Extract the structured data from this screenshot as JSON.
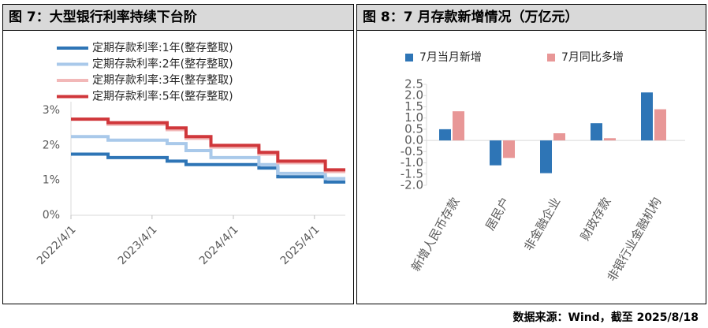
{
  "chart_data": [
    {
      "type": "line",
      "step": true,
      "title": "图 7：大型银行利率持续下台阶",
      "x": [
        "2022/4/1",
        "2022/9/15",
        "2023/6/8",
        "2023/9/1",
        "2023/12/22",
        "2024/7/25",
        "2024/10/18",
        "2025/5/20",
        "2025/8/18"
      ],
      "xlim": [
        "2022/4/1",
        "2025/8/18"
      ],
      "xticks": [
        "2022/4/1",
        "2023/4/1",
        "2024/4/1",
        "2025/4/1"
      ],
      "ylim": [
        0,
        3.25
      ],
      "yticks": [
        {
          "value": 0,
          "label": "0%"
        },
        {
          "value": 1,
          "label": "1%"
        },
        {
          "value": 2,
          "label": "2%"
        },
        {
          "value": 3,
          "label": "3%"
        }
      ],
      "legend": "top-left",
      "series": [
        {
          "name": "定期存款利率:1年(整存整取)",
          "color": "#2e75b6",
          "values": [
            1.75,
            1.65,
            1.55,
            1.45,
            1.45,
            1.35,
            1.1,
            0.95,
            0.95
          ]
        },
        {
          "name": "定期存款利率:2年(整存整取)",
          "color": "#a9c9ea",
          "values": [
            2.25,
            2.15,
            2.05,
            1.85,
            1.65,
            1.45,
            1.2,
            1.05,
            1.05
          ]
        },
        {
          "name": "定期存款利率:3年(整存整取)",
          "color": "#f2b8b8",
          "values": [
            2.75,
            2.6,
            2.45,
            2.2,
            1.95,
            1.75,
            1.5,
            1.25,
            1.25
          ]
        },
        {
          "name": "定期存款利率:5年(整存整取)",
          "color": "#d0373b",
          "values": [
            2.75,
            2.65,
            2.5,
            2.25,
            2.0,
            1.8,
            1.55,
            1.3,
            1.3
          ]
        }
      ]
    },
    {
      "type": "bar",
      "title": "图 8：7 月存款新增情况（万亿元）",
      "categories": [
        "新增人民币存款",
        "居民户",
        "非金融企业",
        "财政存款",
        "非银行业金融机构"
      ],
      "ylim": [
        -2,
        2.5
      ],
      "yticks": [
        2.5,
        {
          "value": 2,
          "label": "2.0"
        },
        1.5,
        {
          "value": 1,
          "label": "1.0"
        },
        0.5,
        {
          "value": 0,
          "label": "0.0"
        },
        -0.5,
        {
          "value": -1,
          "label": "-1.0"
        },
        -1.5,
        {
          "value": -2,
          "label": "-2.0"
        }
      ],
      "legend": "top",
      "series": [
        {
          "name": "7月当月新增",
          "color": "#2e75b6",
          "values": [
            0.5,
            -1.11,
            -1.46,
            0.77,
            2.14
          ]
        },
        {
          "name": "7月同比多增",
          "color": "#e89797",
          "values": [
            1.3,
            -0.78,
            0.32,
            0.1,
            1.39
          ]
        }
      ]
    }
  ],
  "source": "数据来源：Wind，截至 2025/8/18"
}
